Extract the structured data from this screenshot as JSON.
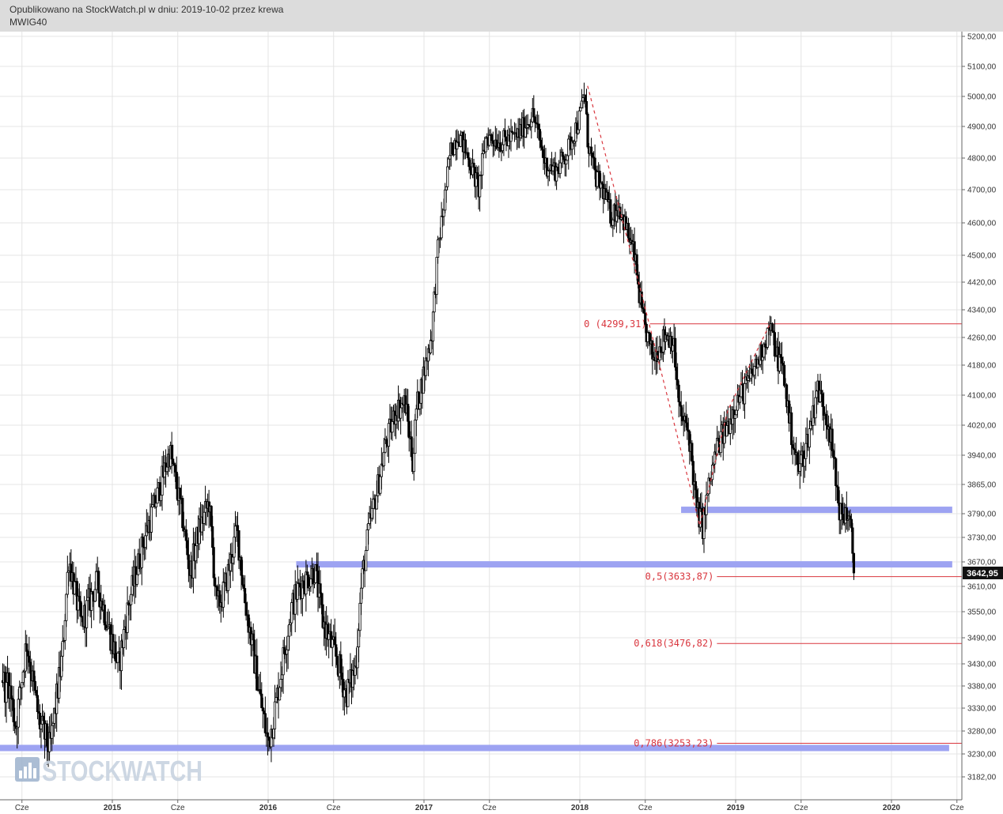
{
  "header": {
    "published": "Opublikowano na StockWatch.pl w dniu: 2019-10-02 przez krewa",
    "symbol": "MWIG40"
  },
  "watermark": "STOCKWATCH",
  "colors": {
    "candle": "#000000",
    "support": "#9da3f2",
    "fib": "#d9363e",
    "grid": "#e4e4e4",
    "header_bg": "#dcdcdc",
    "price_tag_bg": "#111111"
  },
  "chart_data": {
    "type": "candlestick",
    "ylim": [
      3140,
      5225
    ],
    "y_ticks": [
      {
        "value": 5200,
        "label": "5200,00"
      },
      {
        "value": 5100,
        "label": "5100,00"
      },
      {
        "value": 5000,
        "label": "5000,00"
      },
      {
        "value": 4900,
        "label": "4900,00"
      },
      {
        "value": 4800,
        "label": "4800,00"
      },
      {
        "value": 4700,
        "label": "4700,00"
      },
      {
        "value": 4600,
        "label": "4600,00"
      },
      {
        "value": 4500,
        "label": "4500,00"
      },
      {
        "value": 4420,
        "label": "4420,00"
      },
      {
        "value": 4340,
        "label": "4340,00"
      },
      {
        "value": 4260,
        "label": "4260,00"
      },
      {
        "value": 4180,
        "label": "4180,00"
      },
      {
        "value": 4100,
        "label": "4100,00"
      },
      {
        "value": 4020,
        "label": "4020,00"
      },
      {
        "value": 3940,
        "label": "3940,00"
      },
      {
        "value": 3865,
        "label": "3865,00"
      },
      {
        "value": 3790,
        "label": "3790,00"
      },
      {
        "value": 3730,
        "label": "3730,00"
      },
      {
        "value": 3670,
        "label": "3670,00"
      },
      {
        "value": 3610,
        "label": "3610,00"
      },
      {
        "value": 3550,
        "label": "3550,00"
      },
      {
        "value": 3490,
        "label": "3490,00"
      },
      {
        "value": 3430,
        "label": "3430,00"
      },
      {
        "value": 3380,
        "label": "3380,00"
      },
      {
        "value": 3330,
        "label": "3330,00"
      },
      {
        "value": 3280,
        "label": "3280,00"
      },
      {
        "value": 3230,
        "label": "3230,00"
      },
      {
        "value": 3182,
        "label": "3182,00"
      }
    ],
    "x_ticks": [
      {
        "t": 2014.42,
        "label": "Cze",
        "year": false
      },
      {
        "t": 2015.0,
        "label": "2015",
        "year": true
      },
      {
        "t": 2015.42,
        "label": "Cze",
        "year": false
      },
      {
        "t": 2016.0,
        "label": "2016",
        "year": true
      },
      {
        "t": 2016.42,
        "label": "Cze",
        "year": false
      },
      {
        "t": 2017.0,
        "label": "2017",
        "year": true
      },
      {
        "t": 2017.42,
        "label": "Cze",
        "year": false
      },
      {
        "t": 2018.0,
        "label": "2018",
        "year": true
      },
      {
        "t": 2018.42,
        "label": "Cze",
        "year": false
      },
      {
        "t": 2019.0,
        "label": "2019",
        "year": true
      },
      {
        "t": 2019.42,
        "label": "Cze",
        "year": false
      },
      {
        "t": 2020.0,
        "label": "2020",
        "year": true
      },
      {
        "t": 2020.42,
        "label": "Cze",
        "year": false
      }
    ],
    "last_price": {
      "value": 3642.95,
      "label": "3642,95"
    },
    "anchors": [
      [
        2014.32,
        3420
      ],
      [
        2014.38,
        3290
      ],
      [
        2014.45,
        3480
      ],
      [
        2014.53,
        3300
      ],
      [
        2014.6,
        3240
      ],
      [
        2014.68,
        3450
      ],
      [
        2014.72,
        3680
      ],
      [
        2014.8,
        3520
      ],
      [
        2014.9,
        3620
      ],
      [
        2015.0,
        3480
      ],
      [
        2015.04,
        3420
      ],
      [
        2015.1,
        3560
      ],
      [
        2015.2,
        3720
      ],
      [
        2015.3,
        3850
      ],
      [
        2015.37,
        3950
      ],
      [
        2015.45,
        3780
      ],
      [
        2015.5,
        3640
      ],
      [
        2015.55,
        3740
      ],
      [
        2015.62,
        3820
      ],
      [
        2015.67,
        3560
      ],
      [
        2015.72,
        3600
      ],
      [
        2015.8,
        3750
      ],
      [
        2015.85,
        3580
      ],
      [
        2015.95,
        3350
      ],
      [
        2016.0,
        3250
      ],
      [
        2016.05,
        3340
      ],
      [
        2016.1,
        3450
      ],
      [
        2016.15,
        3560
      ],
      [
        2016.2,
        3610
      ],
      [
        2016.3,
        3650
      ],
      [
        2016.35,
        3530
      ],
      [
        2016.45,
        3430
      ],
      [
        2016.5,
        3360
      ],
      [
        2016.56,
        3420
      ],
      [
        2016.6,
        3620
      ],
      [
        2016.65,
        3760
      ],
      [
        2016.7,
        3850
      ],
      [
        2016.75,
        3960
      ],
      [
        2016.82,
        4060
      ],
      [
        2016.88,
        4080
      ],
      [
        2016.93,
        3920
      ],
      [
        2016.95,
        4060
      ],
      [
        2017.0,
        4160
      ],
      [
        2017.05,
        4270
      ],
      [
        2017.09,
        4520
      ],
      [
        2017.13,
        4660
      ],
      [
        2017.17,
        4820
      ],
      [
        2017.22,
        4880
      ],
      [
        2017.3,
        4780
      ],
      [
        2017.35,
        4700
      ],
      [
        2017.4,
        4870
      ],
      [
        2017.5,
        4850
      ],
      [
        2017.6,
        4870
      ],
      [
        2017.7,
        4940
      ],
      [
        2017.78,
        4780
      ],
      [
        2017.85,
        4760
      ],
      [
        2017.92,
        4820
      ],
      [
        2018.0,
        4930
      ],
      [
        2018.03,
        5020
      ],
      [
        2018.05,
        4860
      ],
      [
        2018.1,
        4740
      ],
      [
        2018.15,
        4700
      ],
      [
        2018.2,
        4620
      ],
      [
        2018.25,
        4650
      ],
      [
        2018.3,
        4580
      ],
      [
        2018.35,
        4500
      ],
      [
        2018.4,
        4320
      ],
      [
        2018.47,
        4200
      ],
      [
        2018.52,
        4240
      ],
      [
        2018.55,
        4270
      ],
      [
        2018.6,
        4250
      ],
      [
        2018.64,
        4050
      ],
      [
        2018.7,
        4000
      ],
      [
        2018.75,
        3800
      ],
      [
        2018.79,
        3760
      ],
      [
        2018.82,
        3840
      ],
      [
        2018.88,
        3960
      ],
      [
        2018.95,
        4020
      ],
      [
        2019.0,
        4080
      ],
      [
        2019.08,
        4130
      ],
      [
        2019.15,
        4200
      ],
      [
        2019.22,
        4290
      ],
      [
        2019.27,
        4200
      ],
      [
        2019.3,
        4180
      ],
      [
        2019.35,
        4020
      ],
      [
        2019.4,
        3900
      ],
      [
        2019.45,
        3960
      ],
      [
        2019.5,
        4060
      ],
      [
        2019.52,
        4120
      ],
      [
        2019.56,
        4080
      ],
      [
        2019.6,
        4020
      ],
      [
        2019.65,
        3850
      ],
      [
        2019.68,
        3770
      ],
      [
        2019.71,
        3800
      ],
      [
        2019.74,
        3740
      ],
      [
        2019.755,
        3670
      ],
      [
        2019.76,
        3643
      ]
    ],
    "fib_levels": [
      {
        "t_start": 2018.45,
        "value": 4299.31,
        "label": "0 (4299,31)"
      },
      {
        "t_start": 2018.88,
        "value": 3633.87,
        "label": "0,5(3633,87)"
      },
      {
        "t_start": 2018.88,
        "value": 3476.82,
        "label": "0,618(3476,82)"
      },
      {
        "t_start": 2018.88,
        "value": 3253.23,
        "label": "0,786(3253,23)"
      }
    ],
    "support_levels": [
      {
        "t_start": 2013.95,
        "t_end": 2020.37,
        "value": 3243
      },
      {
        "t_start": 2016.18,
        "t_end": 2020.39,
        "value": 3664
      },
      {
        "t_start": 2018.65,
        "t_end": 2020.39,
        "value": 3800
      }
    ],
    "trend_lines": [
      {
        "points": [
          [
            2018.05,
            5035
          ],
          [
            2018.4,
            4380
          ],
          [
            2018.77,
            3760
          ],
          [
            2018.95,
            4060
          ],
          [
            2019.22,
            4299
          ]
        ]
      }
    ]
  }
}
